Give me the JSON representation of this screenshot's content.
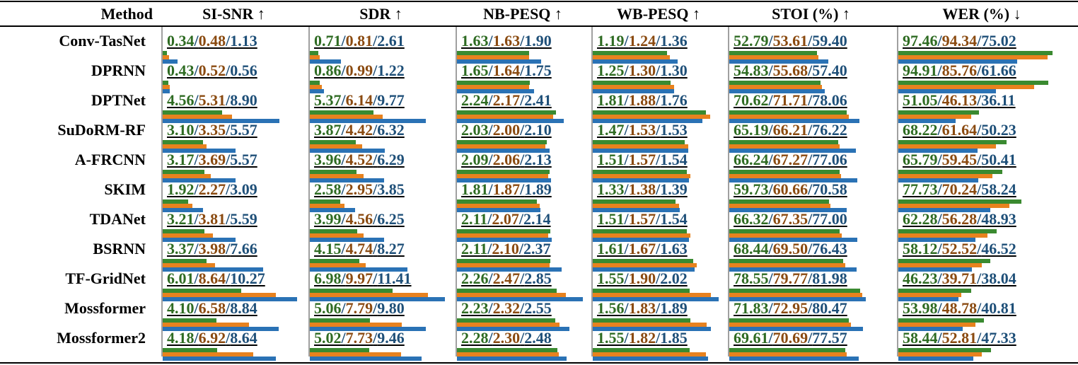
{
  "colors": {
    "v1": "#3a8a30",
    "v2": "#e8821e",
    "v3": "#2a72b5",
    "t1": "#2e6b22",
    "t2": "#8a4a10",
    "t3": "#1e4f78"
  },
  "header": {
    "method": "Method",
    "metrics": [
      "SI-SNR ↑",
      "SDR ↑",
      "NB-PESQ ↑",
      "WB-PESQ ↑",
      "STOI (%) ↑",
      "WER (%) ↓"
    ]
  },
  "chart_data": {
    "type": "table",
    "series_count": 3,
    "metric_max": [
      10.27,
      11.41,
      2.85,
      2.02,
      81.98,
      97.46
    ],
    "rows": [
      {
        "method": "Conv-TasNet",
        "values": [
          [
            "0.34",
            "0.48",
            "1.13"
          ],
          [
            "0.71",
            "0.81",
            "2.61"
          ],
          [
            "1.63",
            "1.63",
            "1.90"
          ],
          [
            "1.19",
            "1.24",
            "1.36"
          ],
          [
            "52.79",
            "53.61",
            "59.40"
          ],
          [
            "97.46",
            "94.34",
            "75.02"
          ]
        ]
      },
      {
        "method": "DPRNN",
        "values": [
          [
            "0.43",
            "0.52",
            "0.56"
          ],
          [
            "0.86",
            "0.99",
            "1.22"
          ],
          [
            "1.65",
            "1.64",
            "1.75"
          ],
          [
            "1.25",
            "1.30",
            "1.30"
          ],
          [
            "54.83",
            "55.68",
            "57.40"
          ],
          [
            "94.91",
            "85.76",
            "61.66"
          ]
        ]
      },
      {
        "method": "DPTNet",
        "values": [
          [
            "4.56",
            "5.31",
            "8.90"
          ],
          [
            "5.37",
            "6.14",
            "9.77"
          ],
          [
            "2.24",
            "2.17",
            "2.41"
          ],
          [
            "1.81",
            "1.88",
            "1.76"
          ],
          [
            "70.62",
            "71.71",
            "78.06"
          ],
          [
            "51.05",
            "46.13",
            "36.11"
          ]
        ]
      },
      {
        "method": "SuDoRM-RF",
        "values": [
          [
            "3.10",
            "3.35",
            "5.57"
          ],
          [
            "3.87",
            "4.42",
            "6.32"
          ],
          [
            "2.03",
            "2.00",
            "2.10"
          ],
          [
            "1.47",
            "1.53",
            "1.53"
          ],
          [
            "65.19",
            "66.21",
            "76.22"
          ],
          [
            "68.22",
            "61.64",
            "50.23"
          ]
        ]
      },
      {
        "method": "A-FRCNN",
        "values": [
          [
            "3.17",
            "3.69",
            "5.57"
          ],
          [
            "3.96",
            "4.52",
            "6.29"
          ],
          [
            "2.09",
            "2.06",
            "2.13"
          ],
          [
            "1.51",
            "1.57",
            "1.54"
          ],
          [
            "66.24",
            "67.27",
            "77.06"
          ],
          [
            "65.79",
            "59.45",
            "50.41"
          ]
        ]
      },
      {
        "method": "SKIM",
        "values": [
          [
            "1.92",
            "2.27",
            "3.09"
          ],
          [
            "2.58",
            "2.95",
            "3.85"
          ],
          [
            "1.81",
            "1.87",
            "1.89"
          ],
          [
            "1.33",
            "1.38",
            "1.39"
          ],
          [
            "59.73",
            "60.66",
            "70.58"
          ],
          [
            "77.73",
            "70.24",
            "58.24"
          ]
        ]
      },
      {
        "method": "TDANet",
        "values": [
          [
            "3.21",
            "3.81",
            "5.59"
          ],
          [
            "3.99",
            "4.56",
            "6.25"
          ],
          [
            "2.11",
            "2.07",
            "2.14"
          ],
          [
            "1.51",
            "1.57",
            "1.54"
          ],
          [
            "66.32",
            "67.35",
            "77.00"
          ],
          [
            "62.28",
            "56.28",
            "48.93"
          ]
        ]
      },
      {
        "method": "BSRNN",
        "values": [
          [
            "3.37",
            "3.98",
            "7.66"
          ],
          [
            "4.15",
            "4.74",
            "8.27"
          ],
          [
            "2.11",
            "2.10",
            "2.37"
          ],
          [
            "1.61",
            "1.67",
            "1.63"
          ],
          [
            "68.44",
            "69.50",
            "76.43"
          ],
          [
            "58.12",
            "52.52",
            "46.52"
          ]
        ]
      },
      {
        "method": "TF-GridNet",
        "values": [
          [
            "6.01",
            "8.64",
            "10.27"
          ],
          [
            "6.98",
            "9.97",
            "11.41"
          ],
          [
            "2.26",
            "2.47",
            "2.85"
          ],
          [
            "1.55",
            "1.90",
            "2.02"
          ],
          [
            "78.55",
            "79.77",
            "81.98"
          ],
          [
            "46.23",
            "39.71",
            "38.04"
          ]
        ]
      },
      {
        "method": "Mossformer",
        "values": [
          [
            "4.10",
            "6.58",
            "8.84"
          ],
          [
            "5.06",
            "7.79",
            "9.80"
          ],
          [
            "2.23",
            "2.32",
            "2.55"
          ],
          [
            "1.56",
            "1.83",
            "1.89"
          ],
          [
            "71.83",
            "72.95",
            "80.47"
          ],
          [
            "53.98",
            "48.78",
            "40.81"
          ]
        ]
      },
      {
        "method": "Mossformer2",
        "values": [
          [
            "4.18",
            "6.92",
            "8.64"
          ],
          [
            "5.02",
            "7.73",
            "9.46"
          ],
          [
            "2.28",
            "2.30",
            "2.48"
          ],
          [
            "1.55",
            "1.82",
            "1.85"
          ],
          [
            "69.61",
            "70.69",
            "77.57"
          ],
          [
            "58.44",
            "52.81",
            "47.33"
          ]
        ]
      }
    ]
  }
}
